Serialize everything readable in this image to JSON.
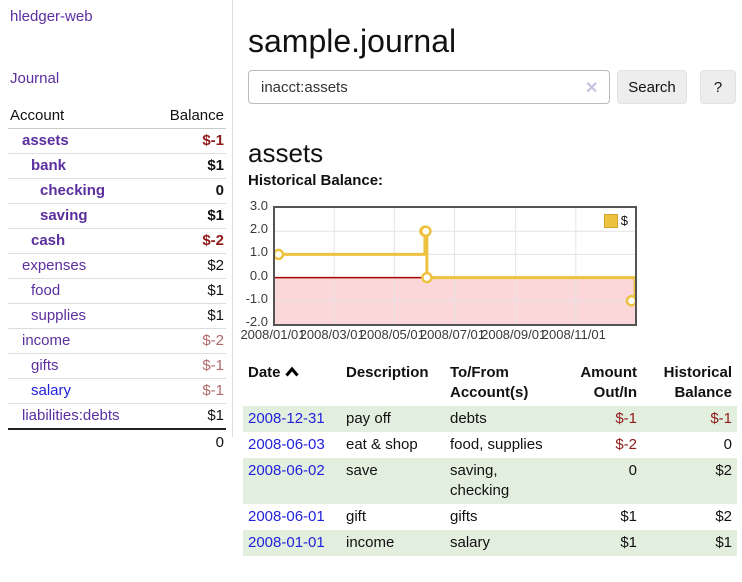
{
  "app": {
    "brand": "hledger-web"
  },
  "sidebar": {
    "journal_link": "Journal",
    "accounts": {
      "account_header": "Account",
      "balance_header": "Balance",
      "rows": [
        {
          "label": "assets",
          "level": 1,
          "bold": true,
          "balance": "$-1"
        },
        {
          "label": "bank",
          "level": 2,
          "bold": true,
          "balance": "$1"
        },
        {
          "label": "checking",
          "level": 3,
          "bold": true,
          "balance": "0"
        },
        {
          "label": "saving",
          "level": 3,
          "bold": true,
          "balance": "$1"
        },
        {
          "label": "cash",
          "level": 2,
          "bold": true,
          "balance": "$-2"
        },
        {
          "label": "expenses",
          "level": 1,
          "bold": false,
          "balance": "$2"
        },
        {
          "label": "food",
          "level": 2,
          "bold": false,
          "balance": "$1"
        },
        {
          "label": "supplies",
          "level": 2,
          "bold": false,
          "balance": "$1"
        },
        {
          "label": "income",
          "level": 1,
          "bold": false,
          "balance": "$-2"
        },
        {
          "label": "gifts",
          "level": 2,
          "bold": false,
          "balance": "$-1"
        },
        {
          "label": "salary",
          "level": 2,
          "bold": false,
          "balance": "$-1",
          "variant": "blue"
        },
        {
          "label": "liabilities:debts",
          "level": 1,
          "bold": false,
          "balance": "$1"
        }
      ],
      "total": "0"
    }
  },
  "main": {
    "title": "sample.journal",
    "search": {
      "value": "inacct:assets",
      "clear_icon": "✕",
      "button_label": "Search",
      "help_label": "?"
    },
    "account_heading": "assets",
    "section_label": "Historical Balance:"
  },
  "chart_data": {
    "type": "line",
    "step": true,
    "title": "Historical Balance",
    "xrange": [
      "2008-01-01",
      "2008-12-31"
    ],
    "ylim": [
      -2,
      3
    ],
    "ytick_labels": [
      "3.0",
      "2.0",
      "1.0",
      "0.0",
      "-1.0",
      "-2.0"
    ],
    "xtick_labels": [
      "2008/01/01",
      "2008/03/01",
      "2008/05/01",
      "2008/07/01",
      "2008/09/01",
      "2008/11/01"
    ],
    "series": [
      {
        "name": "$",
        "color": "#edc240",
        "points": [
          [
            "2008-01-01",
            1
          ],
          [
            "2008-06-01",
            2
          ],
          [
            "2008-06-02",
            2
          ],
          [
            "2008-06-03",
            0
          ],
          [
            "2008-12-31",
            -1
          ]
        ]
      }
    ],
    "legend": {
      "label": "$",
      "position": "top-right"
    },
    "grid": true,
    "negative_region_fill": "#fbd7da",
    "zero_line_color": "#a40000"
  },
  "register": {
    "headers": {
      "date": "Date",
      "description": "Description",
      "accounts": "To/From Account(s)",
      "amount": "Amount Out/In",
      "balance": "Historical Balance"
    },
    "rows": [
      {
        "date": "2008-12-31",
        "description": "pay off",
        "accounts": "debts",
        "amount": "$-1",
        "balance": "$-1"
      },
      {
        "date": "2008-06-03",
        "description": "eat & shop",
        "accounts": "food, supplies",
        "amount": "$-2",
        "balance": "0"
      },
      {
        "date": "2008-06-02",
        "description": "save",
        "accounts": "saving, checking",
        "amount": "0",
        "balance": "$2"
      },
      {
        "date": "2008-06-01",
        "description": "gift",
        "accounts": "gifts",
        "amount": "$1",
        "balance": "$2"
      },
      {
        "date": "2008-01-01",
        "description": "income",
        "accounts": "salary",
        "amount": "$1",
        "balance": "$1"
      }
    ]
  },
  "colors": {
    "link_purple": "#5b2f9e",
    "link_blue": "#2222dd",
    "negative": "#8f1a1a",
    "negative_muted": "#b06a6a",
    "row_shade_green": "#e2efdf",
    "chart_line": "#edc240",
    "chart_negative_fill": "#fbd7da",
    "chart_zero_line": "#a40000",
    "chart_border": "#545454"
  }
}
